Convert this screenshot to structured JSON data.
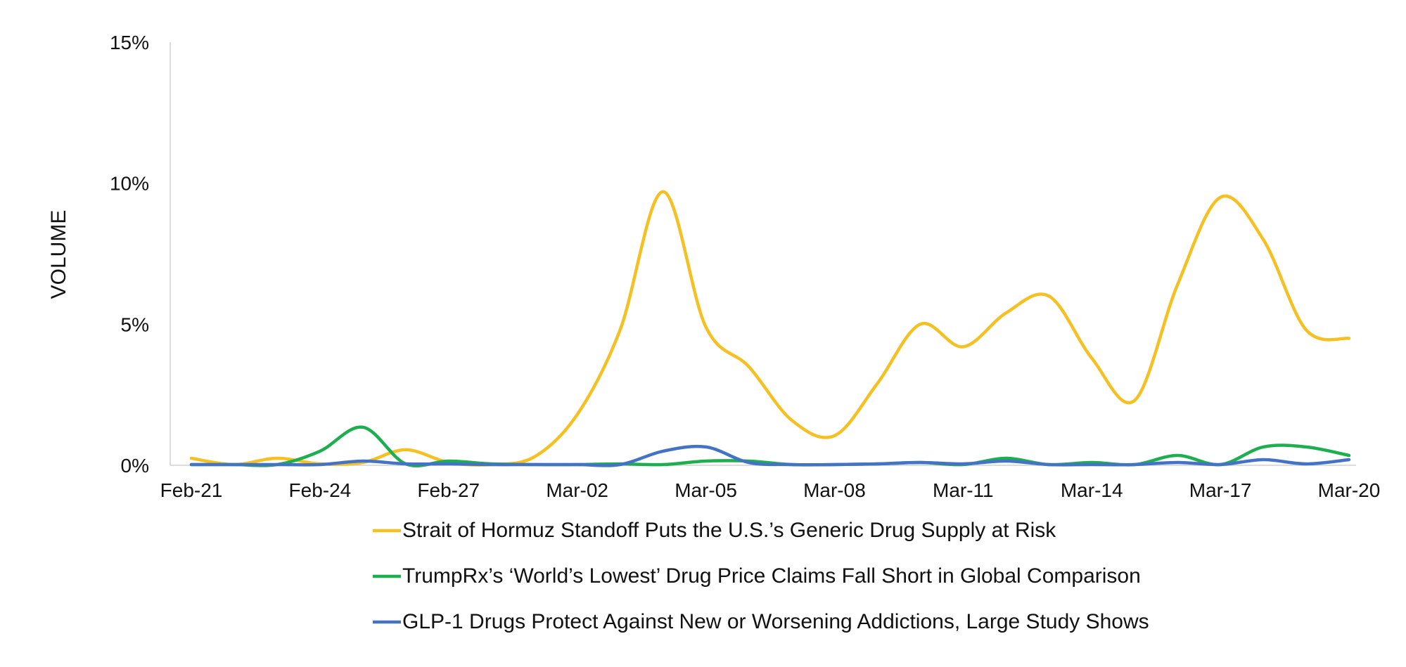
{
  "chart_data": {
    "type": "line",
    "ylabel": "VOLUME",
    "ylim": [
      0,
      15
    ],
    "yticks": [
      "0%",
      "5%",
      "10%",
      "15%"
    ],
    "ytick_values": [
      0,
      5,
      10,
      15
    ],
    "xtick_labels": [
      "Feb-21",
      "Feb-24",
      "Feb-27",
      "Mar-02",
      "Mar-05",
      "Mar-08",
      "Mar-11",
      "Mar-14",
      "Mar-17",
      "Mar-20"
    ],
    "x": [
      "Feb-21",
      "Feb-22",
      "Feb-23",
      "Feb-24",
      "Feb-25",
      "Feb-26",
      "Feb-27",
      "Feb-28",
      "Mar-01",
      "Mar-02",
      "Mar-03",
      "Mar-04",
      "Mar-05",
      "Mar-06",
      "Mar-07",
      "Mar-08",
      "Mar-09",
      "Mar-10",
      "Mar-11",
      "Mar-12",
      "Mar-13",
      "Mar-14",
      "Mar-15",
      "Mar-16",
      "Mar-17",
      "Mar-18",
      "Mar-19",
      "Mar-20"
    ],
    "grid": false,
    "legend_position": "bottom",
    "series": [
      {
        "name": "Strait of Hormuz Standoff Puts the U.S.’s Generic Drug Supply at Risk",
        "color": "#F5C022",
        "values": [
          0.25,
          0,
          0.25,
          0.05,
          0.1,
          0.55,
          0.1,
          0,
          0.3,
          1.8,
          4.8,
          9.7,
          4.9,
          3.5,
          1.6,
          1.05,
          2.9,
          5.0,
          4.2,
          5.4,
          6.0,
          3.8,
          2.3,
          6.4,
          9.5,
          8.0,
          4.8,
          4.5
        ]
      },
      {
        "name": "TrumpRx’s ‘World’s Lowest’ Drug Price Claims Fall Short in Global Comparison",
        "color": "#1DAE4F",
        "values": [
          0,
          0,
          0,
          0.5,
          1.35,
          0.05,
          0.15,
          0.05,
          0,
          0,
          0.05,
          0,
          0.15,
          0.15,
          0,
          0,
          0.05,
          0.1,
          0,
          0.25,
          0,
          0.1,
          0,
          0.35,
          0,
          0.65,
          0.65,
          0.35
        ]
      },
      {
        "name": "GLP-1 Drugs Protect Against New or Worsening Addictions, Large Study Shows",
        "color": "#4472C4",
        "values": [
          0,
          0,
          0,
          0,
          0.15,
          0.05,
          0.05,
          0,
          0,
          0,
          0,
          0.5,
          0.65,
          0.1,
          0,
          0,
          0.05,
          0.1,
          0.05,
          0.15,
          0,
          0,
          0,
          0.1,
          0,
          0.2,
          0.05,
          0.2
        ]
      }
    ]
  }
}
